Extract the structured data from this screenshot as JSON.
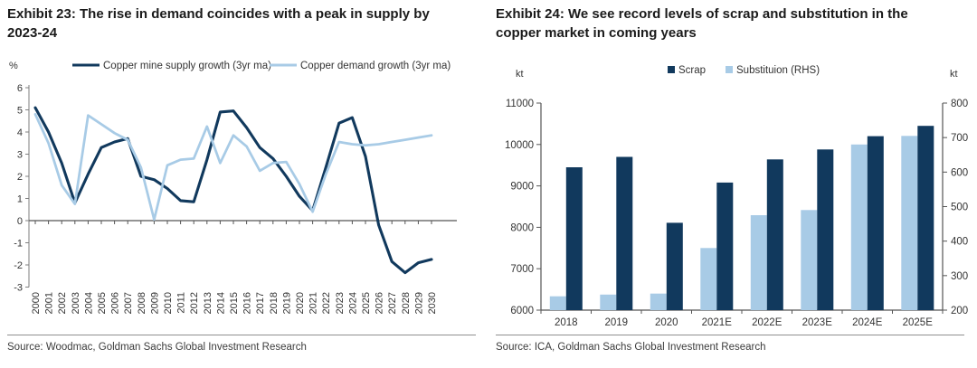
{
  "colors": {
    "navy": "#11395d",
    "light_blue": "#a8cbe6",
    "axis": "#7f7f7f",
    "tick_text": "#333333",
    "title_text": "#1a1a1a",
    "source_text": "#3c3c3c"
  },
  "panels": [
    {
      "exhibit_title": "Exhibit 23: The rise in demand coincides with a peak in supply by 2023-24",
      "source": "Source: Woodmac, Goldman Sachs Global Investment Research",
      "chart_data": {
        "type": "line",
        "unit_label": "%",
        "ylim": [
          -3,
          6
        ],
        "yticks": [
          6,
          5,
          4,
          3,
          2,
          1,
          0,
          -1,
          -2,
          -3
        ],
        "grid": false,
        "legend_position": "top",
        "x": [
          2000,
          2001,
          2002,
          2003,
          2004,
          2005,
          2006,
          2007,
          2008,
          2009,
          2010,
          2011,
          2012,
          2013,
          2014,
          2015,
          2016,
          2017,
          2018,
          2019,
          2020,
          2021,
          2022,
          2023,
          2024,
          2025,
          2026,
          2027,
          2028,
          2029,
          2030
        ],
        "series": [
          {
            "name": "Copper mine supply growth (3yr ma)",
            "color_key": "navy",
            "values": [
              5.1,
              4.0,
              2.6,
              0.8,
              2.1,
              3.3,
              3.55,
              3.7,
              2.0,
              1.85,
              1.45,
              0.9,
              0.85,
              2.75,
              4.9,
              4.95,
              4.2,
              3.3,
              2.8,
              2.0,
              1.1,
              0.45,
              2.4,
              4.4,
              4.65,
              2.9,
              -0.2,
              -1.85,
              -2.35,
              -1.9,
              -1.75
            ]
          },
          {
            "name": "Copper demand growth (3yr ma)",
            "color_key": "light_blue",
            "values": [
              4.8,
              3.5,
              1.6,
              0.75,
              4.75,
              4.35,
              3.95,
              3.65,
              2.4,
              0.05,
              2.5,
              2.75,
              2.8,
              4.25,
              2.6,
              3.85,
              3.35,
              2.25,
              2.6,
              2.65,
              1.65,
              0.4,
              2.1,
              3.55,
              3.45,
              3.4,
              3.45,
              3.55,
              3.65,
              3.75,
              3.85
            ]
          }
        ]
      }
    },
    {
      "exhibit_title": "Exhibit 24: We see record levels of scrap and substitution in the copper market in coming years",
      "source": "Source: ICA, Goldman Sachs Global Investment Research",
      "chart_data": {
        "type": "bar",
        "left_axis_label": "kt",
        "right_axis_label": "kt",
        "ylim_left": [
          6000,
          11000
        ],
        "yticks_left": [
          11000,
          10000,
          9000,
          8000,
          7000,
          6000
        ],
        "ylim_right": [
          200,
          800
        ],
        "yticks_right": [
          800,
          700,
          600,
          500,
          400,
          300,
          200
        ],
        "grid": false,
        "legend_position": "top",
        "categories": [
          "2018",
          "2019",
          "2020",
          "2021E",
          "2022E",
          "2023E",
          "2024E",
          "2025E"
        ],
        "series": [
          {
            "name": "Scrap",
            "axis": "left",
            "color_key": "navy",
            "values": [
              9450,
              9700,
              8110,
              9080,
              9640,
              9880,
              10200,
              10450
            ]
          },
          {
            "name": "Substituion (RHS)",
            "axis": "right",
            "color_key": "light_blue",
            "values": [
              240,
              245,
              248,
              380,
              475,
              490,
              680,
              705
            ]
          }
        ]
      }
    }
  ]
}
